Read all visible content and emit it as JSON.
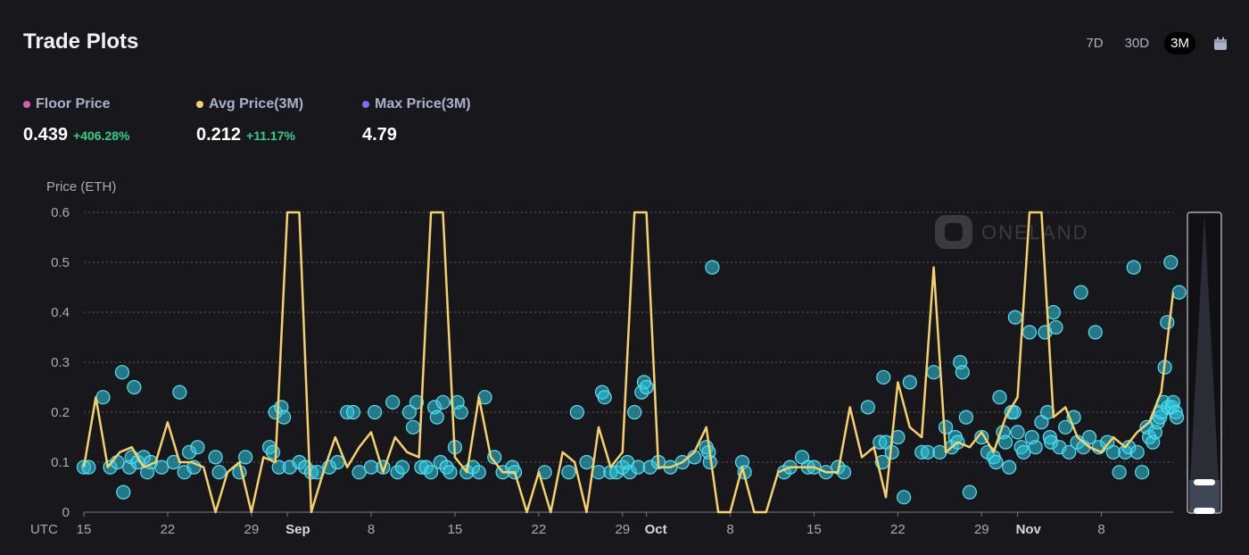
{
  "header": {
    "title": "Trade Plots",
    "tabs": [
      {
        "label": "7D",
        "active": false
      },
      {
        "label": "30D",
        "active": false
      },
      {
        "label": "3M",
        "active": true
      }
    ],
    "calendar_icon": "calendar-icon"
  },
  "stats": [
    {
      "label": "Floor Price",
      "value": "0.439",
      "change": "+406.28%",
      "color": "#d65db1"
    },
    {
      "label": "Avg Price(3M)",
      "value": "0.212",
      "change": "+11.17%",
      "color": "#f5d06b"
    },
    {
      "label": "Max Price(3M)",
      "value": "4.79",
      "change": "",
      "color": "#7b6cf6"
    }
  ],
  "watermark": "ONELAND",
  "chart_data": {
    "type": "scatter",
    "ylabel": "Price (ETH)",
    "ylim": [
      0,
      0.6
    ],
    "yticks": [
      "0",
      "0.1",
      "0.2",
      "0.3",
      "0.4",
      "0.5",
      "0.6"
    ],
    "xlim": [
      0,
      91
    ],
    "x_ticks": [
      {
        "day": 0,
        "label": "15",
        "bold": false
      },
      {
        "day": 7,
        "label": "22",
        "bold": false
      },
      {
        "day": 14,
        "label": "29",
        "bold": false
      },
      {
        "day": 17,
        "label": "Sep",
        "bold": true
      },
      {
        "day": 24,
        "label": "8",
        "bold": false
      },
      {
        "day": 31,
        "label": "15",
        "bold": false
      },
      {
        "day": 38,
        "label": "22",
        "bold": false
      },
      {
        "day": 45,
        "label": "29",
        "bold": false
      },
      {
        "day": 47,
        "label": "Oct",
        "bold": true
      },
      {
        "day": 54,
        "label": "8",
        "bold": false
      },
      {
        "day": 61,
        "label": "15",
        "bold": false
      },
      {
        "day": 68,
        "label": "22",
        "bold": false
      },
      {
        "day": 75,
        "label": "29",
        "bold": false
      },
      {
        "day": 78,
        "label": "Nov",
        "bold": true
      },
      {
        "day": 85,
        "label": "8",
        "bold": false
      }
    ],
    "timezone_label": "UTC",
    "colors": {
      "trades": "#2ec7de",
      "avg_line": "#f5d06b"
    },
    "series": [
      {
        "name": "Avg Price",
        "points": [
          [
            0,
            0.09
          ],
          [
            1,
            0.23
          ],
          [
            2,
            0.09
          ],
          [
            3,
            0.12
          ],
          [
            4,
            0.13
          ],
          [
            5,
            0.09
          ],
          [
            6,
            0.1
          ],
          [
            7,
            0.18
          ],
          [
            8,
            0.1
          ],
          [
            9,
            0.1
          ],
          [
            10,
            0.09
          ],
          [
            11,
            0.0
          ],
          [
            12,
            0.08
          ],
          [
            13,
            0.1
          ],
          [
            14,
            0.0
          ],
          [
            15,
            0.11
          ],
          [
            16,
            0.1
          ],
          [
            17,
            0.6
          ],
          [
            18,
            0.6
          ],
          [
            19,
            0.0
          ],
          [
            20,
            0.08
          ],
          [
            21,
            0.15
          ],
          [
            22,
            0.09
          ],
          [
            23,
            0.13
          ],
          [
            24,
            0.16
          ],
          [
            25,
            0.08
          ],
          [
            26,
            0.15
          ],
          [
            27,
            0.12
          ],
          [
            28,
            0.11
          ],
          [
            29,
            0.6
          ],
          [
            30,
            0.6
          ],
          [
            31,
            0.11
          ],
          [
            32,
            0.08
          ],
          [
            33,
            0.23
          ],
          [
            34,
            0.11
          ],
          [
            35,
            0.08
          ],
          [
            36,
            0.08
          ],
          [
            37,
            0.0
          ],
          [
            38,
            0.08
          ],
          [
            39,
            0.0
          ],
          [
            40,
            0.12
          ],
          [
            41,
            0.1
          ],
          [
            42,
            0.0
          ],
          [
            43,
            0.17
          ],
          [
            44,
            0.09
          ],
          [
            45,
            0.12
          ],
          [
            46,
            0.6
          ],
          [
            47,
            0.6
          ],
          [
            48,
            0.09
          ],
          [
            49,
            0.09
          ],
          [
            50,
            0.1
          ],
          [
            51,
            0.12
          ],
          [
            52,
            0.17
          ],
          [
            53,
            0.0
          ],
          [
            54,
            0.0
          ],
          [
            55,
            0.09
          ],
          [
            56,
            0.0
          ],
          [
            57,
            0.0
          ],
          [
            58,
            0.08
          ],
          [
            59,
            0.09
          ],
          [
            60,
            0.09
          ],
          [
            61,
            0.09
          ],
          [
            62,
            0.08
          ],
          [
            63,
            0.08
          ],
          [
            64,
            0.21
          ],
          [
            65,
            0.11
          ],
          [
            66,
            0.13
          ],
          [
            67,
            0.03
          ],
          [
            68,
            0.26
          ],
          [
            69,
            0.17
          ],
          [
            70,
            0.15
          ],
          [
            71,
            0.49
          ],
          [
            72,
            0.12
          ],
          [
            73,
            0.14
          ],
          [
            74,
            0.13
          ],
          [
            75,
            0.16
          ],
          [
            76,
            0.12
          ],
          [
            77,
            0.19
          ],
          [
            78,
            0.23
          ],
          [
            79,
            0.6
          ],
          [
            80,
            0.6
          ],
          [
            81,
            0.19
          ],
          [
            82,
            0.21
          ],
          [
            83,
            0.15
          ],
          [
            84,
            0.13
          ],
          [
            85,
            0.12
          ],
          [
            86,
            0.15
          ],
          [
            87,
            0.13
          ],
          [
            88,
            0.16
          ],
          [
            89,
            0.18
          ],
          [
            90,
            0.24
          ],
          [
            91,
            0.44
          ]
        ]
      },
      {
        "name": "Trades",
        "points": [
          [
            0,
            0.09
          ],
          [
            0.4,
            0.09
          ],
          [
            1.6,
            0.23
          ],
          [
            2.2,
            0.09
          ],
          [
            2.8,
            0.1
          ],
          [
            3.2,
            0.28
          ],
          [
            3.3,
            0.04
          ],
          [
            3.8,
            0.09
          ],
          [
            4,
            0.11
          ],
          [
            4.2,
            0.25
          ],
          [
            4.5,
            0.1
          ],
          [
            5,
            0.11
          ],
          [
            5.3,
            0.08
          ],
          [
            5.6,
            0.1
          ],
          [
            6.5,
            0.09
          ],
          [
            7.5,
            0.1
          ],
          [
            8,
            0.24
          ],
          [
            8.4,
            0.08
          ],
          [
            8.8,
            0.12
          ],
          [
            9.2,
            0.09
          ],
          [
            9.5,
            0.13
          ],
          [
            11,
            0.11
          ],
          [
            11.3,
            0.08
          ],
          [
            13,
            0.08
          ],
          [
            13.5,
            0.11
          ],
          [
            15.5,
            0.13
          ],
          [
            15.8,
            0.12
          ],
          [
            16,
            0.2
          ],
          [
            16.3,
            0.09
          ],
          [
            16.5,
            0.21
          ],
          [
            16.7,
            0.19
          ],
          [
            17.2,
            0.09
          ],
          [
            18,
            0.1
          ],
          [
            18.5,
            0.09
          ],
          [
            19,
            0.08
          ],
          [
            19.5,
            0.08
          ],
          [
            20.5,
            0.09
          ],
          [
            21.2,
            0.1
          ],
          [
            22,
            0.2
          ],
          [
            22.5,
            0.2
          ],
          [
            23,
            0.08
          ],
          [
            24,
            0.09
          ],
          [
            24.3,
            0.2
          ],
          [
            25,
            0.09
          ],
          [
            25.8,
            0.22
          ],
          [
            26.2,
            0.08
          ],
          [
            26.6,
            0.09
          ],
          [
            27.2,
            0.2
          ],
          [
            27.5,
            0.17
          ],
          [
            27.8,
            0.22
          ],
          [
            28.2,
            0.09
          ],
          [
            28.6,
            0.09
          ],
          [
            29,
            0.08
          ],
          [
            29.3,
            0.21
          ],
          [
            29.5,
            0.19
          ],
          [
            29.8,
            0.1
          ],
          [
            30,
            0.22
          ],
          [
            30.3,
            0.09
          ],
          [
            30.6,
            0.08
          ],
          [
            31,
            0.13
          ],
          [
            31.2,
            0.22
          ],
          [
            31.5,
            0.2
          ],
          [
            32,
            0.08
          ],
          [
            32.5,
            0.09
          ],
          [
            33,
            0.08
          ],
          [
            33.5,
            0.23
          ],
          [
            34.3,
            0.11
          ],
          [
            35,
            0.08
          ],
          [
            35.8,
            0.09
          ],
          [
            36,
            0.08
          ],
          [
            38.5,
            0.08
          ],
          [
            40.5,
            0.08
          ],
          [
            41.2,
            0.2
          ],
          [
            42,
            0.1
          ],
          [
            43,
            0.08
          ],
          [
            43.3,
            0.24
          ],
          [
            43.5,
            0.23
          ],
          [
            44,
            0.08
          ],
          [
            44.5,
            0.08
          ],
          [
            45,
            0.09
          ],
          [
            45.4,
            0.1
          ],
          [
            45.6,
            0.08
          ],
          [
            46,
            0.2
          ],
          [
            46.3,
            0.09
          ],
          [
            46.6,
            0.24
          ],
          [
            46.8,
            0.26
          ],
          [
            47,
            0.25
          ],
          [
            47.3,
            0.09
          ],
          [
            48,
            0.1
          ],
          [
            49,
            0.09
          ],
          [
            50,
            0.1
          ],
          [
            51,
            0.11
          ],
          [
            52,
            0.13
          ],
          [
            52.2,
            0.12
          ],
          [
            52.3,
            0.1
          ],
          [
            52.5,
            0.49
          ],
          [
            55,
            0.1
          ],
          [
            55.2,
            0.08
          ],
          [
            58.5,
            0.08
          ],
          [
            59,
            0.09
          ],
          [
            60,
            0.11
          ],
          [
            60.5,
            0.09
          ],
          [
            61,
            0.09
          ],
          [
            62,
            0.08
          ],
          [
            63,
            0.09
          ],
          [
            63.5,
            0.08
          ],
          [
            65.5,
            0.21
          ],
          [
            66.5,
            0.14
          ],
          [
            66.7,
            0.1
          ],
          [
            66.8,
            0.27
          ],
          [
            67,
            0.14
          ],
          [
            67.5,
            0.12
          ],
          [
            68,
            0.15
          ],
          [
            68.5,
            0.03
          ],
          [
            69,
            0.26
          ],
          [
            70,
            0.12
          ],
          [
            70.5,
            0.12
          ],
          [
            71,
            0.28
          ],
          [
            71.5,
            0.12
          ],
          [
            72,
            0.17
          ],
          [
            72.5,
            0.13
          ],
          [
            72.8,
            0.15
          ],
          [
            73,
            0.14
          ],
          [
            73.2,
            0.3
          ],
          [
            73.4,
            0.28
          ],
          [
            73.7,
            0.19
          ],
          [
            74,
            0.04
          ],
          [
            75,
            0.15
          ],
          [
            75.5,
            0.12
          ],
          [
            76,
            0.11
          ],
          [
            76.2,
            0.1
          ],
          [
            76.5,
            0.23
          ],
          [
            76.8,
            0.16
          ],
          [
            77,
            0.14
          ],
          [
            77.3,
            0.09
          ],
          [
            77.5,
            0.2
          ],
          [
            77.7,
            0.2
          ],
          [
            77.8,
            0.39
          ],
          [
            78,
            0.16
          ],
          [
            78.3,
            0.13
          ],
          [
            78.5,
            0.12
          ],
          [
            79,
            0.36
          ],
          [
            79.2,
            0.15
          ],
          [
            79.5,
            0.13
          ],
          [
            80,
            0.18
          ],
          [
            80.3,
            0.36
          ],
          [
            80.5,
            0.2
          ],
          [
            80.7,
            0.15
          ],
          [
            80.8,
            0.14
          ],
          [
            81,
            0.4
          ],
          [
            81.2,
            0.37
          ],
          [
            81.5,
            0.13
          ],
          [
            82,
            0.17
          ],
          [
            82.3,
            0.12
          ],
          [
            82.7,
            0.19
          ],
          [
            83,
            0.14
          ],
          [
            83.3,
            0.44
          ],
          [
            83.5,
            0.13
          ],
          [
            84,
            0.15
          ],
          [
            84.5,
            0.36
          ],
          [
            84.8,
            0.13
          ],
          [
            85.5,
            0.14
          ],
          [
            86,
            0.12
          ],
          [
            86.5,
            0.08
          ],
          [
            87,
            0.12
          ],
          [
            87.3,
            0.13
          ],
          [
            87.7,
            0.49
          ],
          [
            88,
            0.12
          ],
          [
            88.4,
            0.08
          ],
          [
            88.8,
            0.17
          ],
          [
            89,
            0.15
          ],
          [
            89.3,
            0.14
          ],
          [
            89.5,
            0.16
          ],
          [
            89.7,
            0.18
          ],
          [
            89.9,
            0.19
          ],
          [
            90,
            0.2
          ],
          [
            90.2,
            0.22
          ],
          [
            90.3,
            0.29
          ],
          [
            90.5,
            0.38
          ],
          [
            90.6,
            0.21
          ],
          [
            90.8,
            0.5
          ],
          [
            91.5,
            0.44
          ],
          [
            90.9,
            0.21
          ],
          [
            91,
            0.22
          ],
          [
            91.2,
            0.2
          ],
          [
            91.3,
            0.19
          ]
        ]
      }
    ]
  }
}
